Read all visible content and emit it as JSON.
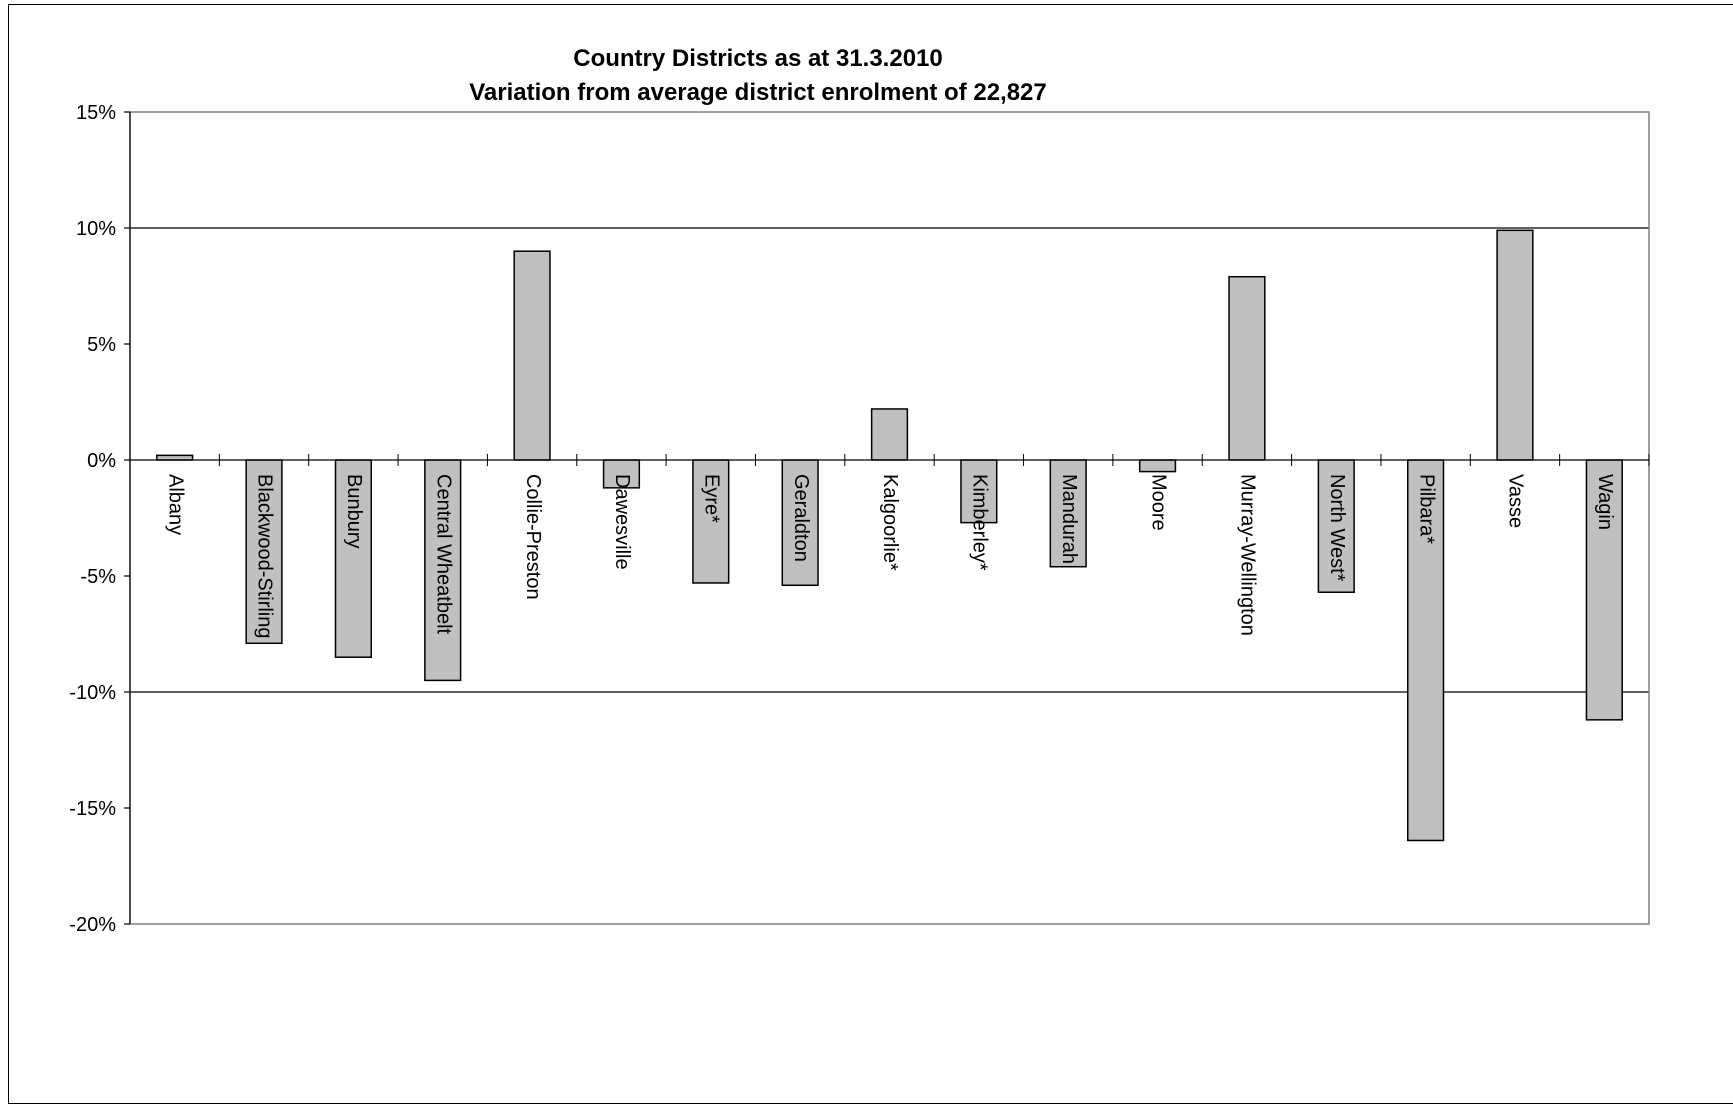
{
  "chart_data": {
    "type": "bar",
    "title": "Country Districts  as at 31.3.2010",
    "subtitle": "Variation from average district enrolment of 22,827",
    "xlabel": "",
    "ylabel": "",
    "ylim": [
      -20,
      15
    ],
    "y_ticks": [
      15,
      10,
      5,
      0,
      -5,
      -10,
      -15,
      -20
    ],
    "y_tick_labels": [
      "15%",
      "10%",
      "5%",
      "0%",
      "-5%",
      "-10%",
      "-15%",
      "-20%"
    ],
    "gridlines": [
      10,
      -10
    ],
    "legend": "none",
    "categories": [
      "Albany",
      "Blackwood-Stirling",
      "Bunbury",
      "Central Wheatbelt",
      "Collie-Preston",
      "Dawesville",
      "Eyre*",
      "Geraldton",
      "Kalgoorlie*",
      "Kimberley*",
      "Mandurah",
      "Moore",
      "Murray-Wellington",
      "North West*",
      "Pilbara*",
      "Vasse",
      "Wagin"
    ],
    "values": [
      0.2,
      -7.9,
      -8.5,
      -9.5,
      9.0,
      -1.2,
      -5.3,
      -5.4,
      2.2,
      -2.7,
      -4.6,
      -0.5,
      7.9,
      -5.7,
      -16.4,
      9.9,
      -11.2
    ],
    "colors": {
      "bar_fill": "#c0c0c0",
      "bar_stroke": "#000000",
      "plot_border": "#808080",
      "grid": "#000000"
    }
  }
}
